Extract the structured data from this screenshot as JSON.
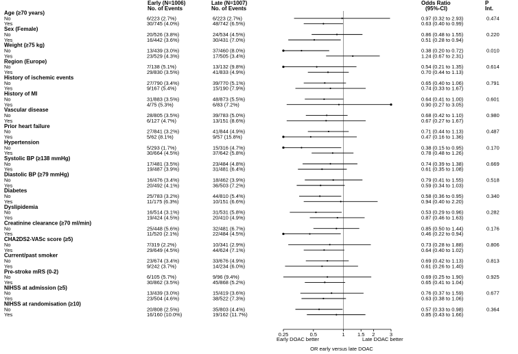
{
  "chart_data": {
    "type": "forest",
    "headers": {
      "early": [
        "Early (N=1006)",
        "No. of Events"
      ],
      "late": [
        "Late (N=1007)",
        "No. of Events"
      ],
      "or": [
        "Odds Ratio",
        "(95%-CI)"
      ],
      "p": [
        "P",
        "Int."
      ]
    },
    "x_axis": {
      "scale": "log",
      "range": [
        0.25,
        3
      ],
      "ticks": [
        {
          "value": 0.25,
          "label": "0.25"
        },
        {
          "value": 0.5,
          "label": "0.5"
        },
        {
          "value": 1,
          "label": "1"
        },
        {
          "value": 1.5,
          "label": "1.5"
        },
        {
          "value": 2,
          "label": "2"
        },
        {
          "value": 3,
          "label": "3"
        }
      ],
      "left_note": "Early DOAC better",
      "right_note": "Late DOAC better",
      "title": "OR early versus late DOAC",
      "reference": 1
    },
    "groups": [
      {
        "title": "Age (≥70 years)",
        "p": "0.474",
        "rows": [
          {
            "label": "No",
            "early": "6/223 (2.7%)",
            "late": "6/223 (2.7%)",
            "or": 0.97,
            "lo": 0.32,
            "hi": 2.93,
            "or_text": "0.97 (0.32 to 2.93)"
          },
          {
            "label": "Yes",
            "early": "30/745 (4.0%)",
            "late": "48/742 (6.5%)",
            "or": 0.63,
            "lo": 0.4,
            "hi": 0.99,
            "or_text": "0.63 (0.40 to 0.99)"
          }
        ]
      },
      {
        "title": "Sex (Female)",
        "p": "0.220",
        "rows": [
          {
            "label": "No",
            "early": "20/526 (3.8%)",
            "late": "24/534 (4.5%)",
            "or": 0.86,
            "lo": 0.48,
            "hi": 1.55,
            "or_text": "0.86 (0.48 to 1.55)"
          },
          {
            "label": "Yes",
            "early": "16/442 (3.6%)",
            "late": "30/431 (7.0%)",
            "or": 0.51,
            "lo": 0.28,
            "hi": 0.94,
            "or_text": "0.51 (0.28 to 0.94)"
          }
        ]
      },
      {
        "title": "Weight (≥75 kg)",
        "p": "0.010",
        "rows": [
          {
            "label": "No",
            "early": "13/439 (3.0%)",
            "late": "37/460 (8.0%)",
            "or": 0.38,
            "lo": 0.2,
            "hi": 0.72,
            "or_text": "0.38 (0.20 to 0.72)"
          },
          {
            "label": "Yes",
            "early": "23/529 (4.3%)",
            "late": "17/505 (3.4%)",
            "or": 1.24,
            "lo": 0.67,
            "hi": 2.31,
            "or_text": "1.24 (0.67 to 2.31)"
          }
        ]
      },
      {
        "title": "Region (Europe)",
        "p": "0.614",
        "rows": [
          {
            "label": "No",
            "early": "7/138 (5.1%)",
            "late": "13/132 (9.8%)",
            "or": 0.54,
            "lo": 0.21,
            "hi": 1.35,
            "or_text": "0.54 (0.21 to 1.35)"
          },
          {
            "label": "Yes",
            "early": "29/830 (3.5%)",
            "late": "41/833 (4.9%)",
            "or": 0.7,
            "lo": 0.44,
            "hi": 1.13,
            "or_text": "0.70 (0.44 to 1.13)"
          }
        ]
      },
      {
        "title": "History of ischemic events",
        "p": "0.791",
        "rows": [
          {
            "label": "No",
            "early": "27/790 (3.4%)",
            "late": "39/770 (5.1%)",
            "or": 0.65,
            "lo": 0.4,
            "hi": 1.06,
            "or_text": "0.65 (0.40 to 1.06)"
          },
          {
            "label": "Yes",
            "early": "9/167 (5.4%)",
            "late": "15/190 (7.9%)",
            "or": 0.74,
            "lo": 0.33,
            "hi": 1.67,
            "or_text": "0.74 (0.33 to 1.67)"
          }
        ]
      },
      {
        "title": "History of MI",
        "p": "0.601",
        "rows": [
          {
            "label": "No",
            "early": "31/883 (3.5%)",
            "late": "48/873 (5.5%)",
            "or": 0.64,
            "lo": 0.41,
            "hi": 1.0,
            "or_text": "0.64 (0.41 to 1.00)"
          },
          {
            "label": "Yes",
            "early": "4/75 (5.3%)",
            "late": "6/83 (7.2%)",
            "or": 0.9,
            "lo": 0.27,
            "hi": 3.05,
            "or_text": "0.90 (0.27 to 3.05)"
          }
        ]
      },
      {
        "title": "Vascular disease",
        "p": "0.980",
        "rows": [
          {
            "label": "No",
            "early": "28/805 (3.5%)",
            "late": "39/783 (5.0%)",
            "or": 0.68,
            "lo": 0.42,
            "hi": 1.1,
            "or_text": "0.68 (0.42 to 1.10)"
          },
          {
            "label": "Yes",
            "early": "6/127 (4.7%)",
            "late": "13/151 (8.6%)",
            "or": 0.67,
            "lo": 0.27,
            "hi": 1.67,
            "or_text": "0.67 (0.27 to 1.67)"
          }
        ]
      },
      {
        "title": "Prior heart failure",
        "p": "0.487",
        "rows": [
          {
            "label": "No",
            "early": "27/841 (3.2%)",
            "late": "41/844 (4.9%)",
            "or": 0.71,
            "lo": 0.44,
            "hi": 1.13,
            "or_text": "0.71 (0.44 to 1.13)"
          },
          {
            "label": "Yes",
            "early": "5/62 (8.1%)",
            "late": "9/57 (15.8%)",
            "or": 0.47,
            "lo": 0.16,
            "hi": 1.36,
            "or_text": "0.47 (0.16 to 1.36)"
          }
        ]
      },
      {
        "title": "Hypertension",
        "p": "0.170",
        "rows": [
          {
            "label": "No",
            "early": "5/293 (1.7%)",
            "late": "15/316 (4.7%)",
            "or": 0.38,
            "lo": 0.15,
            "hi": 0.95,
            "or_text": "0.38 (0.15 to 0.95)"
          },
          {
            "label": "Yes",
            "early": "30/664 (4.5%)",
            "late": "37/642 (5.8%)",
            "or": 0.78,
            "lo": 0.48,
            "hi": 1.26,
            "or_text": "0.78 (0.48 to 1.26)"
          }
        ]
      },
      {
        "title": "Systolic BP (≥138 mmHg)",
        "p": "0.669",
        "rows": [
          {
            "label": "No",
            "early": "17/481 (3.5%)",
            "late": "23/484 (4.8%)",
            "or": 0.74,
            "lo": 0.39,
            "hi": 1.38,
            "or_text": "0.74 (0.39 to 1.38)"
          },
          {
            "label": "Yes",
            "early": "19/487 (3.9%)",
            "late": "31/481 (6.4%)",
            "or": 0.61,
            "lo": 0.35,
            "hi": 1.08,
            "or_text": "0.61 (0.35 to 1.08)"
          }
        ]
      },
      {
        "title": "Diastolic BP (≥79 mmHg)",
        "p": "0.518",
        "rows": [
          {
            "label": "No",
            "early": "16/476 (3.4%)",
            "late": "18/462 (3.9%)",
            "or": 0.79,
            "lo": 0.41,
            "hi": 1.55,
            "or_text": "0.79 (0.41 to 1.55)"
          },
          {
            "label": "Yes",
            "early": "20/492 (4.1%)",
            "late": "36/503 (7.2%)",
            "or": 0.59,
            "lo": 0.34,
            "hi": 1.03,
            "or_text": "0.59 (0.34 to 1.03)"
          }
        ]
      },
      {
        "title": "Diabetes",
        "p": "0.340",
        "rows": [
          {
            "label": "No",
            "early": "25/783 (3.2%)",
            "late": "44/810 (5.4%)",
            "or": 0.58,
            "lo": 0.36,
            "hi": 0.95,
            "or_text": "0.58 (0.36 to 0.95)"
          },
          {
            "label": "Yes",
            "early": "11/175 (6.3%)",
            "late": "10/151 (6.6%)",
            "or": 0.94,
            "lo": 0.4,
            "hi": 2.2,
            "or_text": "0.94 (0.40 to 2.20)"
          }
        ]
      },
      {
        "title": "Dyslipidemia",
        "p": "0.282",
        "rows": [
          {
            "label": "No",
            "early": "16/514 (3.1%)",
            "late": "31/531 (5.8%)",
            "or": 0.53,
            "lo": 0.29,
            "hi": 0.96,
            "or_text": "0.53 (0.29 to 0.96)"
          },
          {
            "label": "Yes",
            "early": "19/424 (4.5%)",
            "late": "20/410 (4.9%)",
            "or": 0.87,
            "lo": 0.46,
            "hi": 1.63,
            "or_text": "0.87 (0.46 to 1.63)"
          }
        ]
      },
      {
        "title": "Creatinine clearance (≥70 ml/min)",
        "p": "0.176",
        "rows": [
          {
            "label": "No",
            "early": "25/448 (5.6%)",
            "late": "32/481 (6.7%)",
            "or": 0.85,
            "lo": 0.5,
            "hi": 1.44,
            "or_text": "0.85 (0.50 to 1.44)"
          },
          {
            "label": "Yes",
            "early": "11/520 (2.1%)",
            "late": "22/484 (4.5%)",
            "or": 0.46,
            "lo": 0.22,
            "hi": 0.94,
            "or_text": "0.46 (0.22 to 0.94)"
          }
        ]
      },
      {
        "title": "CHA2DS2-VASc score (≥5)",
        "p": "0.806",
        "rows": [
          {
            "label": "No",
            "early": "7/319 (2.2%)",
            "late": "10/341 (2.9%)",
            "or": 0.73,
            "lo": 0.28,
            "hi": 1.88,
            "or_text": "0.73 (0.28 to 1.88)"
          },
          {
            "label": "Yes",
            "early": "29/649 (4.5%)",
            "late": "44/624 (7.1%)",
            "or": 0.64,
            "lo": 0.4,
            "hi": 1.02,
            "or_text": "0.64 (0.40 to 1.02)"
          }
        ]
      },
      {
        "title": "Current/past smoker",
        "p": "0.813",
        "rows": [
          {
            "label": "No",
            "early": "23/674 (3.4%)",
            "late": "33/676 (4.9%)",
            "or": 0.69,
            "lo": 0.42,
            "hi": 1.13,
            "or_text": "0.69 (0.42 to 1.13)"
          },
          {
            "label": "Yes",
            "early": "9/242 (3.7%)",
            "late": "14/234 (6.0%)",
            "or": 0.61,
            "lo": 0.26,
            "hi": 1.4,
            "or_text": "0.61 (0.26 to 1.40)"
          }
        ]
      },
      {
        "title": "Pre-stroke mRS (0-2)",
        "p": "0.925",
        "rows": [
          {
            "label": "No",
            "early": "6/105 (5.7%)",
            "late": "9/96 (9.4%)",
            "or": 0.69,
            "lo": 0.25,
            "hi": 1.9,
            "or_text": "0.69 (0.25 to 1.90)"
          },
          {
            "label": "Yes",
            "early": "30/862 (3.5%)",
            "late": "45/868 (5.2%)",
            "or": 0.65,
            "lo": 0.41,
            "hi": 1.04,
            "or_text": "0.65 (0.41 to 1.04)"
          }
        ]
      },
      {
        "title": "NIHSS at admission (≥5)",
        "p": "0.677",
        "rows": [
          {
            "label": "No",
            "early": "13/439 (3.0%)",
            "late": "15/419 (3.6%)",
            "or": 0.76,
            "lo": 0.37,
            "hi": 1.59,
            "or_text": "0.76 (0.37 to 1.59)"
          },
          {
            "label": "Yes",
            "early": "23/504 (4.6%)",
            "late": "38/522 (7.3%)",
            "or": 0.63,
            "lo": 0.38,
            "hi": 1.06,
            "or_text": "0.63 (0.38 to 1.06)"
          }
        ]
      },
      {
        "title": "NIHSS at randomisation (≥10)",
        "p": "0.364",
        "rows": [
          {
            "label": "No",
            "early": "20/808 (2.5%)",
            "late": "35/803 (4.4%)",
            "or": 0.57,
            "lo": 0.33,
            "hi": 0.98,
            "or_text": "0.57 (0.33 to 0.98)"
          },
          {
            "label": "Yes",
            "early": "16/160 (10.0%)",
            "late": "19/162 (11.7%)",
            "or": 0.85,
            "lo": 0.43,
            "hi": 1.66,
            "or_text": "0.85 (0.43 to 1.66)"
          }
        ]
      }
    ]
  }
}
